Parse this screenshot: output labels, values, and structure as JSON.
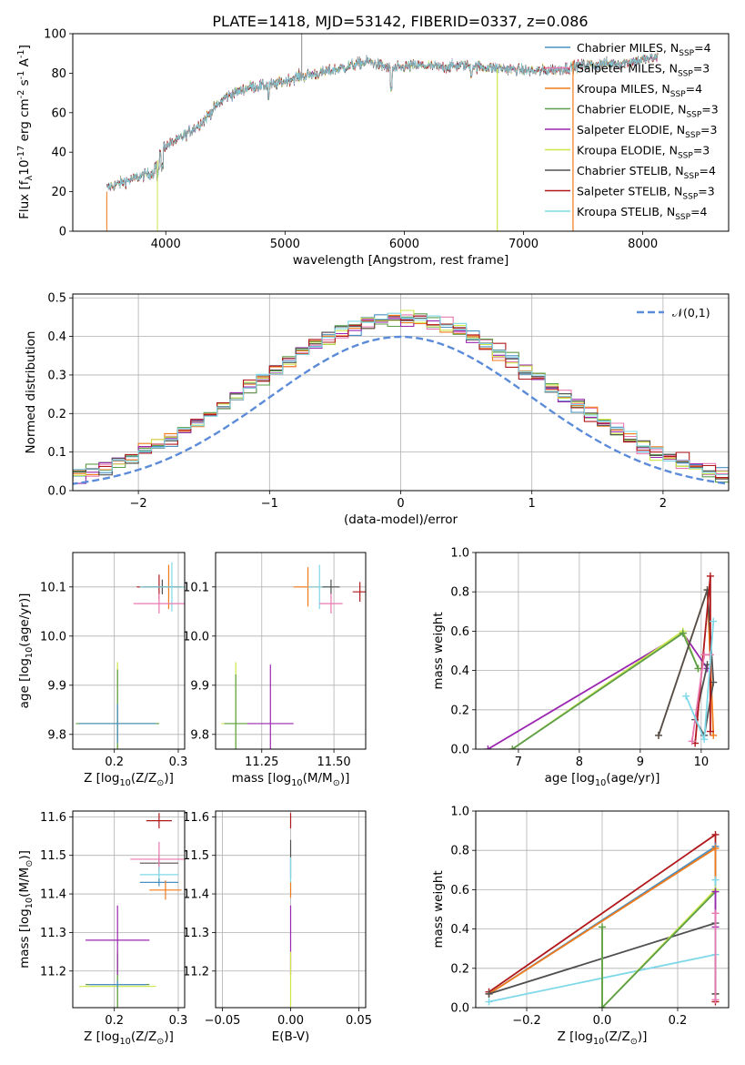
{
  "chart_data": [
    {
      "id": "spectrum",
      "type": "line",
      "title": "PLATE=1418, MJD=53142, FIBERID=0337, z=0.086",
      "xlabel": "wavelength [Angstrom, rest frame]",
      "ylabel": "Flux [f$_\\lambda$10$^{-17}$ erg cm$^{-2}$ s$^{-1}$ A$^{-1}$]",
      "xlim": [
        3220,
        8720
      ],
      "ylim": [
        0,
        100
      ],
      "xticks": [
        "4000",
        "5000",
        "6000",
        "7000",
        "8000"
      ],
      "yticks": [
        "0",
        "20",
        "40",
        "60",
        "80",
        "100"
      ],
      "grid": false,
      "legend_position": "upper right",
      "spectrum_range": [
        3505,
        8125
      ],
      "continuum": [
        [
          3505,
          22
        ],
        [
          3700,
          26
        ],
        [
          3900,
          30
        ],
        [
          3950,
          42
        ],
        [
          4100,
          46
        ],
        [
          4300,
          55
        ],
        [
          4500,
          68
        ],
        [
          4700,
          73
        ],
        [
          4900,
          74
        ],
        [
          5100,
          78
        ],
        [
          5300,
          80
        ],
        [
          5500,
          83
        ],
        [
          5700,
          86
        ],
        [
          5900,
          82
        ],
        [
          6100,
          84
        ],
        [
          6300,
          83
        ],
        [
          6500,
          84
        ],
        [
          6700,
          83
        ],
        [
          6900,
          82
        ],
        [
          7100,
          81
        ],
        [
          7300,
          82
        ],
        [
          7500,
          84
        ],
        [
          7800,
          85
        ],
        [
          8125,
          88
        ]
      ],
      "series": [
        {
          "name": "Chabrier MILES, N$_{SSP}$=4",
          "color": "#4a90c2"
        },
        {
          "name": "Salpeter MILES, N$_{SSP}$=3",
          "color": "#e879b0"
        },
        {
          "name": "Kroupa MILES, N$_{SSP}$=4",
          "color": "#f07a1a"
        },
        {
          "name": "Chabrier ELODIE, N$_{SSP}$=3",
          "color": "#5d9e4a"
        },
        {
          "name": "Salpeter ELODIE, N$_{SSP}$=3",
          "color": "#9b27b0"
        },
        {
          "name": "Kroupa ELODIE, N$_{SSP}$=3",
          "color": "#cde648"
        },
        {
          "name": "Chabrier STELIB, N$_{SSP}$=4",
          "color": "#505050"
        },
        {
          "name": "Salpeter STELIB, N$_{SSP}$=3",
          "color": "#b0181b"
        },
        {
          "name": "Kroupa STELIB, N$_{SSP}$=4",
          "color": "#7fd8e8"
        }
      ]
    },
    {
      "id": "residuals",
      "type": "line",
      "xlabel": "(data-model)/error",
      "ylabel": "Normed distribution",
      "xlim": [
        -2.5,
        2.5
      ],
      "ylim": [
        0,
        0.51
      ],
      "xticks": [
        "−2",
        "−1",
        "0",
        "1",
        "2"
      ],
      "yticks": [
        "0.0",
        "0.1",
        "0.2",
        "0.3",
        "0.4",
        "0.5"
      ],
      "grid": true,
      "legend_position": "upper right",
      "reference_label": "$\\mathcal{N}(0,1)$",
      "bin_width": 0.1,
      "series_colors": [
        "#4a90c2",
        "#e879b0",
        "#f07a1a",
        "#5d9e4a",
        "#9b27b0",
        "#cde648",
        "#505050",
        "#b0181b",
        "#7fd8e8"
      ]
    },
    {
      "id": "z-age",
      "type": "scatter",
      "xlabel": "Z [log$_{10}$(Z/Z$_\\odot$)]",
      "ylabel": "age  [log$_{10}$(age/yr)]",
      "xlim": [
        0.135,
        0.31
      ],
      "ylim": [
        9.77,
        10.17
      ],
      "xticks": [
        "0.2",
        "0.3"
      ],
      "yticks": [
        "9.8",
        "9.9",
        "10.0",
        "10.1"
      ],
      "grid": true,
      "points": [
        {
          "x": 0.205,
          "y": 9.822,
          "xerr": 0.065,
          "yerr": 0.125,
          "color": "#cde648"
        },
        {
          "x": 0.205,
          "y": 9.822,
          "xerr": 0.065,
          "yerr": 0.11,
          "color": "#5d9e4a"
        },
        {
          "x": 0.205,
          "y": 9.822,
          "xerr": 0.06,
          "yerr": 0.04,
          "color": "#4a90c2"
        },
        {
          "x": 0.285,
          "y": 10.1,
          "xerr": 0.04,
          "yerr": 0.045,
          "color": "#f07a1a"
        },
        {
          "x": 0.27,
          "y": 10.1,
          "xerr": 0.035,
          "yerr": 0.025,
          "color": "#b0181b"
        },
        {
          "x": 0.275,
          "y": 10.1,
          "xerr": 0.03,
          "yerr": 0.015,
          "color": "#505050"
        },
        {
          "x": 0.29,
          "y": 10.1,
          "xerr": 0.05,
          "yerr": 0.05,
          "color": "#7fd8e8"
        },
        {
          "x": 0.27,
          "y": 10.066,
          "xerr": 0.04,
          "yerr": 0.02,
          "color": "#e879b0"
        }
      ]
    },
    {
      "id": "mass-age",
      "type": "scatter",
      "xlabel": "mass [log$_{10}$(M/M$_\\odot$)]",
      "ylabel": "",
      "xlim": [
        11.09,
        11.61
      ],
      "ylim": [
        9.77,
        10.17
      ],
      "xticks": [
        "11.25",
        "11.50"
      ],
      "yticks": [
        "9.8",
        "9.9",
        "10.0",
        "10.1"
      ],
      "grid": true,
      "points": [
        {
          "x": 11.16,
          "y": 9.822,
          "xerr": 0.05,
          "yerr": 0.125,
          "color": "#cde648"
        },
        {
          "x": 11.16,
          "y": 9.822,
          "xerr": 0.04,
          "yerr": 0.1,
          "color": "#5d9e4a"
        },
        {
          "x": 11.28,
          "y": 9.822,
          "xerr": 0.08,
          "yerr": 0.12,
          "color": "#9b27b0"
        },
        {
          "x": 11.41,
          "y": 10.1,
          "xerr": 0.05,
          "yerr": 0.04,
          "color": "#f07a1a"
        },
        {
          "x": 11.45,
          "y": 10.1,
          "xerr": 0.04,
          "yerr": 0.045,
          "color": "#7fd8e8"
        },
        {
          "x": 11.49,
          "y": 10.1,
          "xerr": 0.03,
          "yerr": 0.015,
          "color": "#505050"
        },
        {
          "x": 11.59,
          "y": 10.09,
          "xerr": 0.025,
          "yerr": 0.02,
          "color": "#b0181b"
        },
        {
          "x": 11.49,
          "y": 10.066,
          "xerr": 0.04,
          "yerr": 0.02,
          "color": "#e879b0"
        }
      ]
    },
    {
      "id": "age-weight",
      "type": "line",
      "xlabel": "age  [log$_{10}$(age/yr)]",
      "ylabel": "mass weight",
      "xlim": [
        6.3,
        10.45
      ],
      "ylim": [
        0,
        1
      ],
      "xticks": [
        "7",
        "8",
        "9",
        "10"
      ],
      "yticks": [
        "0.0",
        "0.2",
        "0.4",
        "0.6",
        "0.8",
        "1.0"
      ],
      "grid": true,
      "series": [
        {
          "color": "#9b27b0",
          "points": [
            [
              6.5,
              0.0
            ],
            [
              9.7,
              0.59
            ],
            [
              10.1,
              0.41
            ]
          ]
        },
        {
          "color": "#cde648",
          "points": [
            [
              6.9,
              0.0
            ],
            [
              9.7,
              0.6
            ],
            [
              9.95,
              0.41
            ]
          ]
        },
        {
          "color": "#5d9e4a",
          "points": [
            [
              6.9,
              0.0
            ],
            [
              9.7,
              0.59
            ],
            [
              9.95,
              0.41
            ]
          ]
        },
        {
          "color": "#f07a1a",
          "points": [
            [
              9.3,
              0.07
            ],
            [
              10.1,
              0.81
            ],
            [
              10.2,
              0.07
            ]
          ]
        },
        {
          "color": "#505050",
          "points": [
            [
              9.3,
              0.07
            ],
            [
              10.1,
              0.81
            ],
            [
              10.2,
              0.34
            ],
            [
              10.05,
              0.07
            ],
            [
              9.9,
              0.15
            ],
            [
              10.1,
              0.43
            ]
          ]
        },
        {
          "color": "#b0181b",
          "points": [
            [
              9.9,
              0.03
            ],
            [
              10.15,
              0.88
            ],
            [
              10.15,
              0.09
            ]
          ]
        },
        {
          "color": "#e879b0",
          "points": [
            [
              9.85,
              0.04
            ],
            [
              10.05,
              0.48
            ],
            [
              10.15,
              0.48
            ]
          ]
        },
        {
          "color": "#7fd8e8",
          "points": [
            [
              9.75,
              0.27
            ],
            [
              10.05,
              0.05
            ],
            [
              10.2,
              0.65
            ]
          ]
        }
      ]
    },
    {
      "id": "z-mass",
      "type": "scatter",
      "xlabel": "Z [log$_{10}$(Z/Z$_\\odot$)]",
      "ylabel": "mass [log$_{10}$(M/M$_\\odot$)]",
      "xlim": [
        0.135,
        0.31
      ],
      "ylim": [
        11.105,
        11.615
      ],
      "xticks": [
        "0.2",
        "0.3"
      ],
      "yticks": [
        "11.2",
        "11.3",
        "11.4",
        "11.5",
        "11.6"
      ],
      "grid": true,
      "points": [
        {
          "x": 0.205,
          "y": 11.16,
          "xerr": 0.06,
          "yerr": 0.09,
          "color": "#cde648"
        },
        {
          "x": 0.205,
          "y": 11.165,
          "xerr": 0.05,
          "yerr": 0.08,
          "color": "#5d9e4a"
        },
        {
          "x": 0.205,
          "y": 11.165,
          "xerr": 0.045,
          "yerr": 0.01,
          "color": "#4a90c2"
        },
        {
          "x": 0.205,
          "y": 11.28,
          "xerr": 0.05,
          "yerr": 0.09,
          "color": "#9b27b0"
        },
        {
          "x": 0.27,
          "y": 11.59,
          "xerr": 0.02,
          "yerr": 0.02,
          "color": "#b0181b"
        },
        {
          "x": 0.27,
          "y": 11.48,
          "xerr": 0.03,
          "yerr": 0.02,
          "color": "#505050"
        },
        {
          "x": 0.27,
          "y": 11.49,
          "xerr": 0.045,
          "yerr": 0.045,
          "color": "#e879b0"
        },
        {
          "x": 0.27,
          "y": 11.45,
          "xerr": 0.03,
          "yerr": 0.02,
          "color": "#7fd8e8"
        },
        {
          "x": 0.27,
          "y": 11.43,
          "xerr": 0.03,
          "yerr": 0.01,
          "color": "#4a90c2"
        },
        {
          "x": 0.28,
          "y": 11.41,
          "xerr": 0.025,
          "yerr": 0.025,
          "color": "#f07a1a"
        }
      ]
    },
    {
      "id": "ebv-mass",
      "type": "scatter",
      "xlabel": "E(B-V)",
      "ylabel": "",
      "xlim": [
        -0.055,
        0.055
      ],
      "ylim": [
        11.105,
        11.615
      ],
      "xticks": [
        "−0.05",
        "0.00",
        "0.05"
      ],
      "yticks": [
        "11.2",
        "11.3",
        "11.4",
        "11.5",
        "11.6"
      ],
      "grid": true,
      "points": [
        {
          "x": 0,
          "y": 11.59,
          "xerr": 0,
          "yerr": 0.02,
          "color": "#b0181b"
        },
        {
          "x": 0,
          "y": 11.49,
          "xerr": 0,
          "yerr": 0.05,
          "color": "#505050"
        },
        {
          "x": 0,
          "y": 11.45,
          "xerr": 0,
          "yerr": 0.045,
          "color": "#7fd8e8"
        },
        {
          "x": 0,
          "y": 11.41,
          "xerr": 0,
          "yerr": 0.02,
          "color": "#f07a1a"
        },
        {
          "x": 0,
          "y": 11.28,
          "xerr": 0,
          "yerr": 0.09,
          "color": "#9b27b0"
        },
        {
          "x": 0,
          "y": 11.17,
          "xerr": 0,
          "yerr": 0.08,
          "color": "#cde648"
        }
      ]
    },
    {
      "id": "z-weight",
      "type": "line",
      "xlabel": "Z [log$_{10}$(Z/Z$_\\odot$)]",
      "ylabel": "mass weight",
      "xlim": [
        -0.335,
        0.335
      ],
      "ylim": [
        0,
        1
      ],
      "xticks": [
        "−0.2",
        "0.0",
        "0.2"
      ],
      "yticks": [
        "0.0",
        "0.2",
        "0.4",
        "0.6",
        "0.8",
        "1.0"
      ],
      "grid": true,
      "series": [
        {
          "color": "#b0181b",
          "points": [
            [
              -0.3,
              0.08
            ],
            [
              0.3,
              0.88
            ],
            [
              0.3,
              0.03
            ]
          ]
        },
        {
          "color": "#4a90c2",
          "points": [
            [
              -0.3,
              0.07
            ],
            [
              0.3,
              0.82
            ],
            [
              0.3,
              0.07
            ]
          ]
        },
        {
          "color": "#f07a1a",
          "points": [
            [
              -0.3,
              0.07
            ],
            [
              0.3,
              0.81
            ],
            [
              0.3,
              0.07
            ]
          ]
        },
        {
          "color": "#505050",
          "points": [
            [
              -0.3,
              0.07
            ],
            [
              0.3,
              0.43
            ],
            [
              0.3,
              0.07
            ]
          ]
        },
        {
          "color": "#7fd8e8",
          "points": [
            [
              -0.3,
              0.03
            ],
            [
              0.3,
              0.27
            ],
            [
              0.3,
              0.65
            ]
          ]
        },
        {
          "color": "#cde648",
          "points": [
            [
              0.0,
              0.41
            ],
            [
              0.0,
              0.0
            ],
            [
              0.3,
              0.6
            ]
          ]
        },
        {
          "color": "#5d9e4a",
          "points": [
            [
              0.0,
              0.41
            ],
            [
              0.0,
              0.0
            ],
            [
              0.3,
              0.59
            ]
          ]
        },
        {
          "color": "#9b27b0",
          "points": [
            [
              0.3,
              0.59
            ],
            [
              0.3,
              0.41
            ]
          ]
        },
        {
          "color": "#e879b0",
          "points": [
            [
              0.3,
              0.48
            ],
            [
              0.3,
              0.04
            ]
          ]
        }
      ]
    }
  ]
}
